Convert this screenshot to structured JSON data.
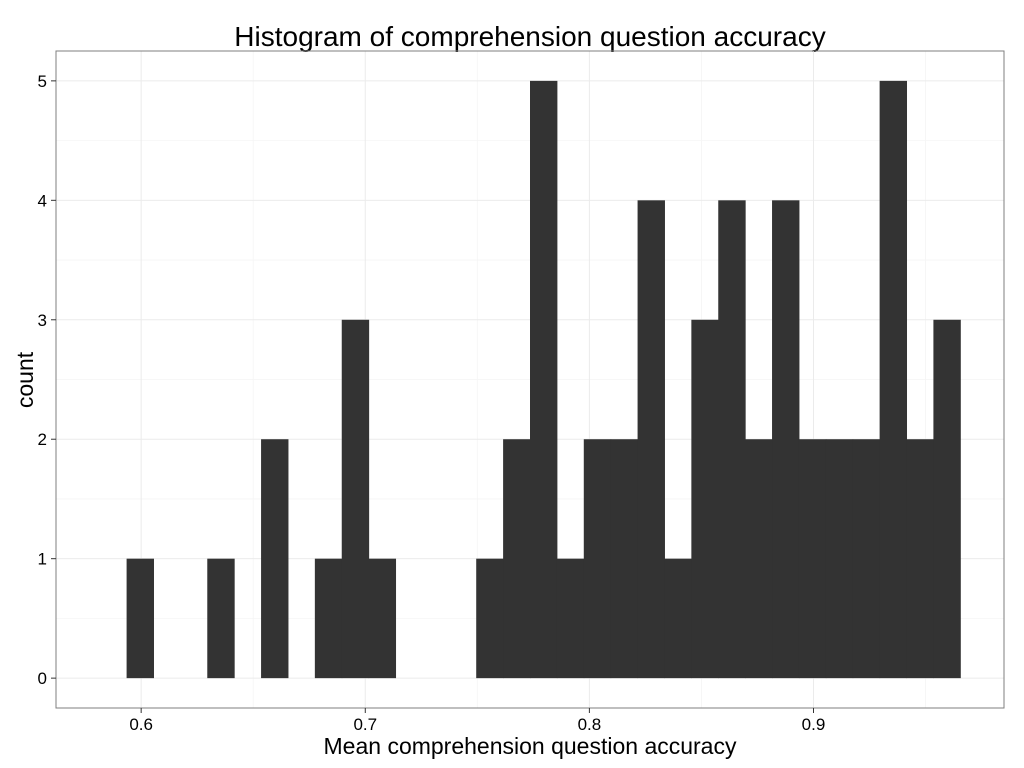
{
  "chart_data": {
    "type": "bar",
    "subtype": "histogram",
    "title": "Histogram of comprehension question accuracy",
    "xlabel": "Mean comprehension question accuracy",
    "ylabel": "count",
    "bar_color": "#333333",
    "background": "#ffffff",
    "grid": true,
    "bin_width": 0.012,
    "xlim": [
      0.562,
      0.985
    ],
    "ylim": [
      -0.25,
      5.25
    ],
    "x_ticks": [
      0.6,
      0.7,
      0.8,
      0.9
    ],
    "x_tick_labels": [
      "0.6",
      "0.7",
      "0.8",
      "0.9"
    ],
    "y_ticks": [
      0,
      1,
      2,
      3,
      4,
      5
    ],
    "y_tick_labels": [
      "0",
      "1",
      "2",
      "3",
      "4",
      "5"
    ],
    "bins": [
      {
        "x": 0.5995,
        "count": 1
      },
      {
        "x": 0.6355,
        "count": 1
      },
      {
        "x": 0.6595,
        "count": 2
      },
      {
        "x": 0.6835,
        "count": 1
      },
      {
        "x": 0.6955,
        "count": 3
      },
      {
        "x": 0.7075,
        "count": 1
      },
      {
        "x": 0.7555,
        "count": 1
      },
      {
        "x": 0.7675,
        "count": 2
      },
      {
        "x": 0.7795,
        "count": 5
      },
      {
        "x": 0.7915,
        "count": 1
      },
      {
        "x": 0.8035,
        "count": 2
      },
      {
        "x": 0.8155,
        "count": 2
      },
      {
        "x": 0.8275,
        "count": 4
      },
      {
        "x": 0.8395,
        "count": 1
      },
      {
        "x": 0.8515,
        "count": 3
      },
      {
        "x": 0.8635,
        "count": 4
      },
      {
        "x": 0.8755,
        "count": 2
      },
      {
        "x": 0.8875,
        "count": 4
      },
      {
        "x": 0.8995,
        "count": 2
      },
      {
        "x": 0.9115,
        "count": 2
      },
      {
        "x": 0.9235,
        "count": 2
      },
      {
        "x": 0.9355,
        "count": 5
      },
      {
        "x": 0.9475,
        "count": 2
      },
      {
        "x": 0.9595,
        "count": 3
      }
    ]
  }
}
